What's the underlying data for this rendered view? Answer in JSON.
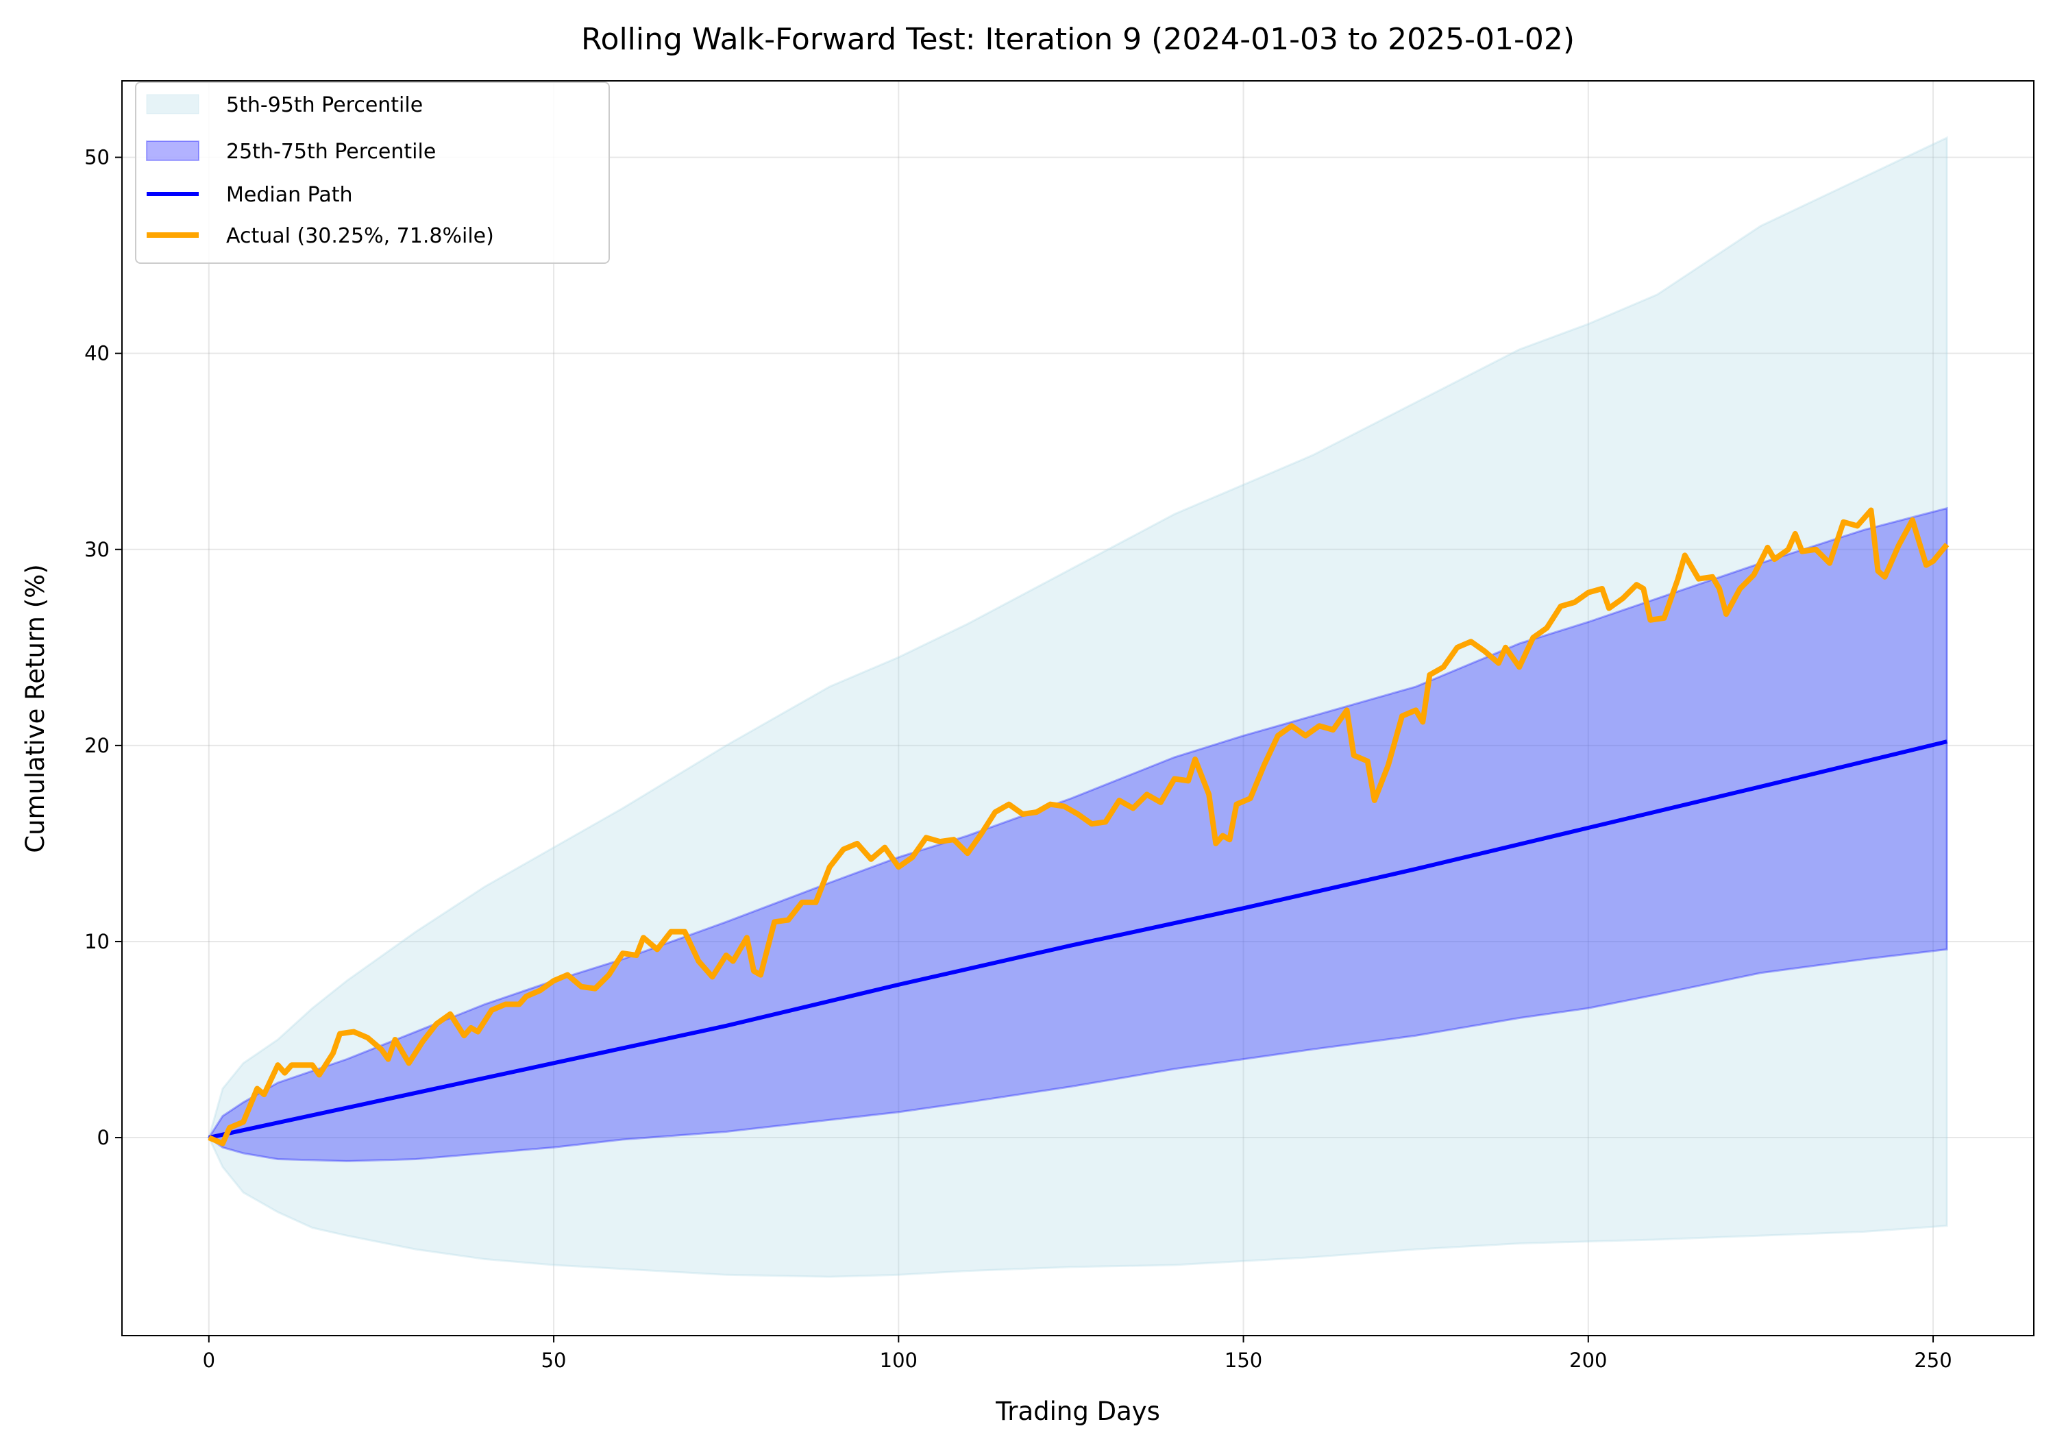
{
  "chart_data": {
    "type": "line",
    "title": "Rolling Walk-Forward Test: Iteration 9 (2024-01-03 to 2025-01-02)",
    "xlabel": "Trading Days",
    "ylabel": "Cumulative Return (%)",
    "xlim": [
      -12.6,
      264.6
    ],
    "ylim": [
      -10.1,
      53.9
    ],
    "xticks": [
      0,
      50,
      100,
      150,
      200,
      250
    ],
    "yticks": [
      0,
      10,
      20,
      30,
      40,
      50
    ],
    "grid": true,
    "legend_position": "top-left",
    "colors": {
      "band_5_95": "#add8e6",
      "band_25_75": "#0000ff",
      "median": "#0000ff",
      "actual": "#ffa500"
    },
    "series": [
      {
        "name": "5th-95th Percentile",
        "kind": "band",
        "x": [
          0,
          2,
          5,
          10,
          15,
          20,
          30,
          40,
          50,
          60,
          75,
          90,
          100,
          110,
          125,
          140,
          150,
          160,
          175,
          190,
          200,
          210,
          225,
          240,
          252
        ],
        "lower": [
          0,
          -1.5,
          -2.8,
          -3.8,
          -4.6,
          -5.0,
          -5.7,
          -6.2,
          -6.5,
          -6.7,
          -7.0,
          -7.1,
          -7.0,
          -6.8,
          -6.6,
          -6.5,
          -6.3,
          -6.1,
          -5.7,
          -5.4,
          -5.3,
          -5.2,
          -5.0,
          -4.8,
          -4.5
        ],
        "upper": [
          0,
          2.5,
          3.8,
          5.0,
          6.6,
          8.0,
          10.5,
          12.8,
          14.8,
          16.8,
          20.0,
          23.0,
          24.5,
          26.2,
          29.0,
          31.8,
          33.3,
          34.8,
          37.5,
          40.2,
          41.5,
          43.0,
          46.5,
          49.0,
          51.0
        ]
      },
      {
        "name": "25th-75th Percentile",
        "kind": "band",
        "x": [
          0,
          2,
          5,
          10,
          20,
          30,
          40,
          50,
          60,
          75,
          90,
          100,
          110,
          125,
          140,
          150,
          160,
          175,
          190,
          200,
          210,
          225,
          240,
          252
        ],
        "lower": [
          0,
          -0.5,
          -0.8,
          -1.1,
          -1.2,
          -1.1,
          -0.8,
          -0.5,
          -0.1,
          0.3,
          0.9,
          1.3,
          1.8,
          2.6,
          3.5,
          4.0,
          4.5,
          5.2,
          6.1,
          6.6,
          7.3,
          8.4,
          9.1,
          9.6
        ],
        "upper": [
          0,
          1.1,
          1.8,
          2.8,
          4.0,
          5.4,
          6.8,
          8.0,
          9.1,
          11.0,
          13.0,
          14.3,
          15.4,
          17.3,
          19.4,
          20.5,
          21.5,
          23.0,
          25.2,
          26.3,
          27.5,
          29.3,
          31.0,
          32.1
        ]
      },
      {
        "name": "Median Path",
        "kind": "line",
        "x": [
          0,
          25,
          50,
          75,
          100,
          125,
          150,
          175,
          200,
          225,
          252
        ],
        "y": [
          0,
          1.9,
          3.8,
          5.7,
          7.8,
          9.8,
          11.7,
          13.7,
          15.8,
          17.9,
          20.2
        ]
      },
      {
        "name": "Actual (30.25%, 71.8%ile)",
        "kind": "line",
        "x": [
          0,
          2,
          3,
          5,
          7,
          8,
          10,
          11,
          12,
          15,
          16,
          18,
          19,
          21,
          23,
          25,
          26,
          27,
          29,
          31,
          33,
          35,
          37,
          38,
          39,
          41,
          43,
          45,
          46,
          48,
          50,
          52,
          54,
          56,
          58,
          60,
          62,
          63,
          65,
          67,
          69,
          71,
          73,
          75,
          76,
          78,
          79,
          80,
          82,
          84,
          86,
          88,
          90,
          92,
          94,
          96,
          98,
          100,
          102,
          104,
          106,
          108,
          110,
          112,
          114,
          116,
          118,
          120,
          122,
          124,
          126,
          128,
          130,
          132,
          134,
          136,
          138,
          140,
          142,
          143,
          145,
          146,
          147,
          148,
          149,
          151,
          153,
          155,
          157,
          159,
          161,
          163,
          165,
          166,
          168,
          169,
          171,
          173,
          175,
          176,
          177,
          179,
          181,
          183,
          185,
          187,
          188,
          190,
          192,
          194,
          196,
          198,
          200,
          202,
          203,
          205,
          207,
          208,
          209,
          211,
          213,
          214,
          216,
          218,
          219,
          220,
          222,
          224,
          226,
          227,
          229,
          230,
          231,
          233,
          235,
          237,
          239,
          241,
          242,
          243,
          245,
          247,
          249,
          250,
          252
        ],
        "y": [
          0,
          -0.3,
          0.5,
          0.8,
          2.5,
          2.2,
          3.7,
          3.3,
          3.7,
          3.7,
          3.2,
          4.3,
          5.3,
          5.4,
          5.1,
          4.5,
          4.0,
          5.0,
          3.8,
          4.9,
          5.8,
          6.3,
          5.2,
          5.6,
          5.4,
          6.5,
          6.8,
          6.8,
          7.2,
          7.5,
          8.0,
          8.3,
          7.7,
          7.6,
          8.3,
          9.4,
          9.3,
          10.2,
          9.6,
          10.5,
          10.5,
          9.0,
          8.2,
          9.3,
          9.0,
          10.2,
          8.5,
          8.3,
          11.0,
          11.1,
          12.0,
          12.0,
          13.8,
          14.7,
          15.0,
          14.2,
          14.8,
          13.8,
          14.3,
          15.3,
          15.1,
          15.2,
          14.5,
          15.5,
          16.6,
          17.0,
          16.5,
          16.6,
          17.0,
          16.9,
          16.5,
          16.0,
          16.1,
          17.2,
          16.8,
          17.5,
          17.1,
          18.3,
          18.2,
          19.3,
          17.5,
          15.0,
          15.4,
          15.2,
          17.0,
          17.3,
          19.0,
          20.5,
          21.0,
          20.5,
          21.0,
          20.8,
          21.8,
          19.5,
          19.2,
          17.2,
          19.0,
          21.5,
          21.8,
          21.2,
          23.6,
          24.0,
          25.0,
          25.3,
          24.8,
          24.2,
          25.0,
          24.0,
          25.5,
          26.0,
          27.1,
          27.3,
          27.8,
          28.0,
          27.0,
          27.5,
          28.2,
          28.0,
          26.4,
          26.5,
          28.5,
          29.7,
          28.5,
          28.6,
          28.0,
          26.7,
          28.0,
          28.7,
          30.1,
          29.5,
          30.0,
          30.8,
          29.9,
          30.0,
          29.3,
          31.4,
          31.2,
          32.0,
          28.9,
          28.6,
          30.2,
          31.5,
          29.2,
          29.4,
          30.25
        ]
      }
    ]
  }
}
